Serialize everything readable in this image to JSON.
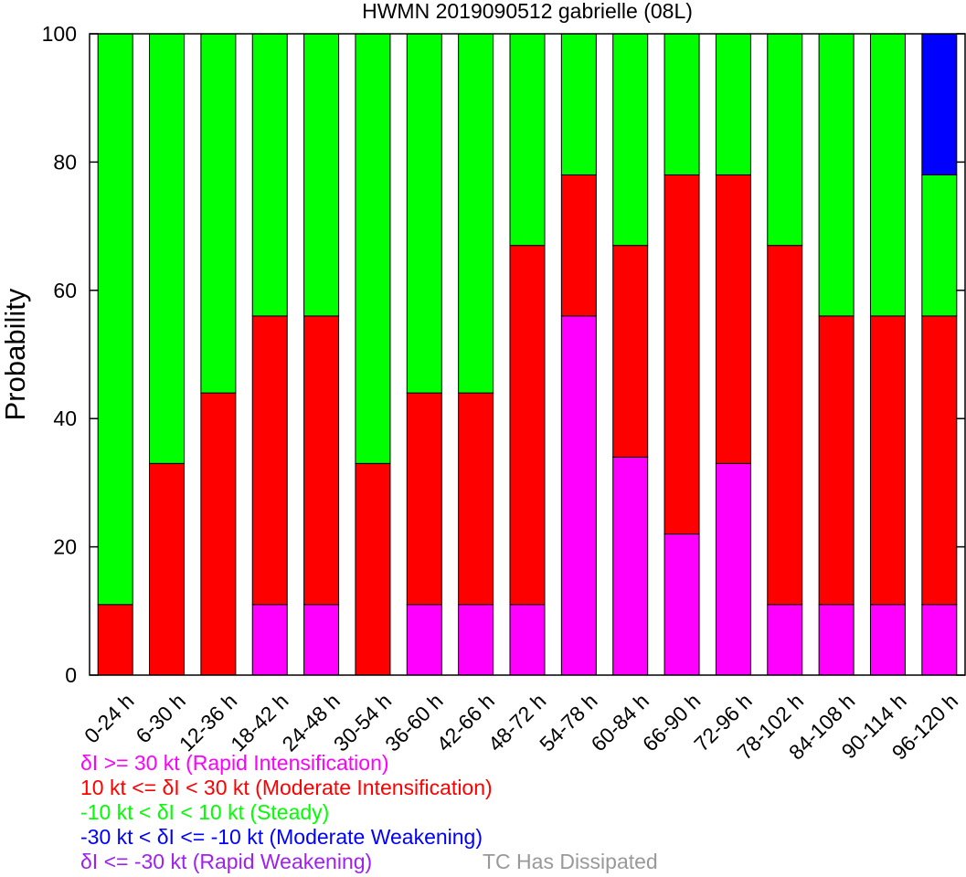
{
  "chart_data": {
    "type": "bar",
    "stacked": true,
    "title": "HWMN 2019090512 gabrielle (08L)",
    "xlabel": "",
    "ylabel": "Probability",
    "ylim": [
      0,
      100
    ],
    "yticks": [
      "0",
      "20",
      "40",
      "60",
      "80",
      "100"
    ],
    "grid": false,
    "categories": [
      "0-24 h",
      "6-30 h",
      "12-36 h",
      "18-42 h",
      "24-48 h",
      "30-54 h",
      "36-60 h",
      "42-66 h",
      "48-72 h",
      "54-78 h",
      "60-84 h",
      "66-90 h",
      "72-96 h",
      "78-102 h",
      "84-108 h",
      "90-114 h",
      "96-120 h"
    ],
    "series": [
      {
        "name": "δI >= 30 kt (Rapid Intensification)",
        "color": "#ff00ff",
        "values": [
          0,
          0,
          0,
          11,
          11,
          0,
          11,
          11,
          11,
          56,
          34,
          22,
          33,
          11,
          11,
          11,
          11
        ]
      },
      {
        "name": "10 kt <= δI < 30 kt (Moderate Intensification)",
        "color": "#ff0000",
        "values": [
          11,
          33,
          44,
          45,
          45,
          33,
          33,
          33,
          56,
          22,
          33,
          56,
          45,
          56,
          45,
          45,
          45
        ]
      },
      {
        "name": "-10 kt < δI < 10 kt (Steady)",
        "color": "#00ff00",
        "values": [
          89,
          67,
          56,
          44,
          44,
          67,
          56,
          56,
          33,
          22,
          33,
          22,
          22,
          33,
          44,
          44,
          22
        ]
      },
      {
        "name": "-30 kt < δI <= -10 kt (Moderate Weakening)",
        "color": "#0000ff",
        "values": [
          0,
          0,
          0,
          0,
          0,
          0,
          0,
          0,
          0,
          0,
          0,
          0,
          0,
          0,
          0,
          0,
          22
        ]
      },
      {
        "name": "δI <= -30 kt (Rapid Weakening)",
        "color": "#a020f0",
        "values": [
          0,
          0,
          0,
          0,
          0,
          0,
          0,
          0,
          0,
          0,
          0,
          0,
          0,
          0,
          0,
          0,
          0
        ]
      },
      {
        "name": "TC Has Dissipated",
        "color": "#999999",
        "values": [
          0,
          0,
          0,
          0,
          0,
          0,
          0,
          0,
          0,
          0,
          0,
          0,
          0,
          0,
          0,
          0,
          0
        ]
      }
    ]
  }
}
